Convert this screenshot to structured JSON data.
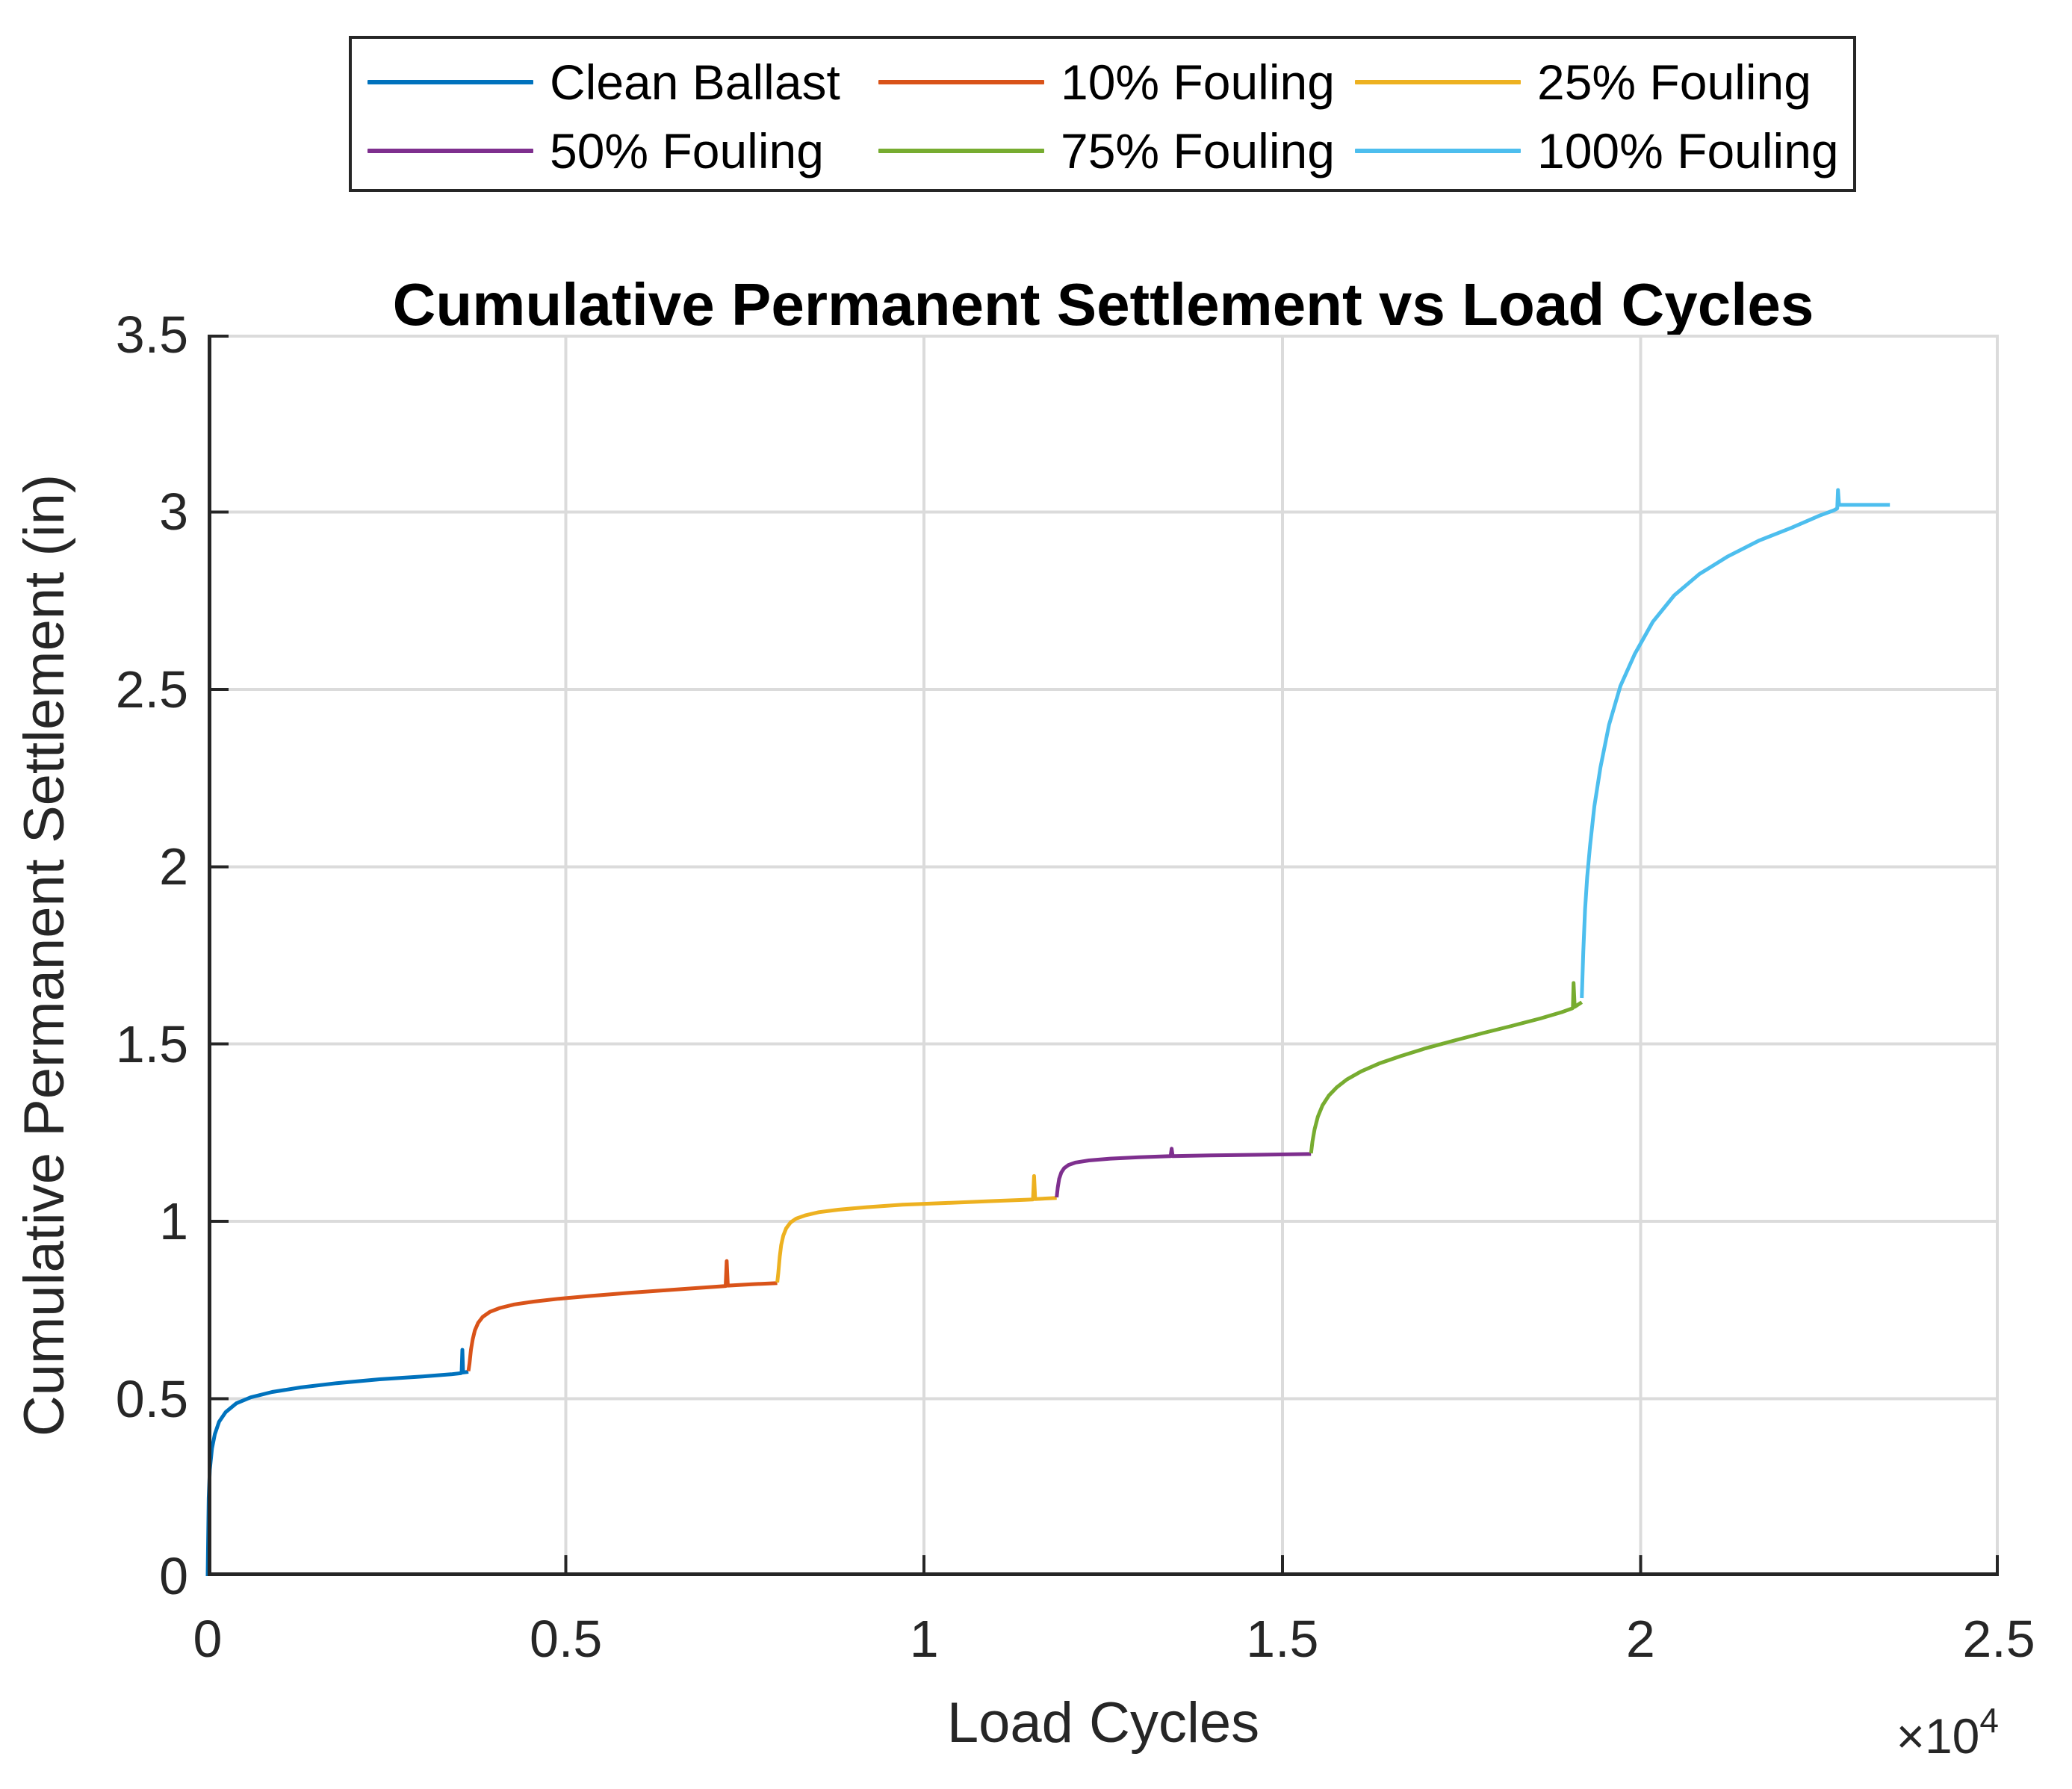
{
  "chart_data": {
    "type": "line",
    "title": "Cumulative Permanent Settlement vs Load Cycles",
    "xlabel": "Load Cycles",
    "ylabel": "Cumulative Permanent Settlement (in)",
    "x_axis_multiplier_base": "×10",
    "x_axis_multiplier_exponent": "4",
    "xlim": [
      0,
      25000
    ],
    "ylim": [
      0,
      3.5
    ],
    "xticks": {
      "values": [
        0,
        5000,
        10000,
        15000,
        20000,
        25000
      ],
      "labels": [
        "0",
        "0.5",
        "1",
        "1.5",
        "2",
        "2.5"
      ]
    },
    "yticks": {
      "values": [
        0,
        0.5,
        1,
        1.5,
        2,
        2.5,
        3,
        3.5
      ],
      "labels": [
        "0",
        "0.5",
        "1",
        "1.5",
        "2",
        "2.5",
        "3",
        "3.5"
      ]
    },
    "grid": true,
    "legend": {
      "position": "above-plot",
      "columns": 2,
      "rows": 3
    },
    "axis_color": "#262626",
    "grid_color": "#dbdbdb",
    "background_color": "#ffffff",
    "series": [
      {
        "name": "Clean Ballast",
        "color": "#0072BD",
        "points": [
          [
            0,
            0
          ],
          [
            15,
            0.22
          ],
          [
            30,
            0.3
          ],
          [
            60,
            0.36
          ],
          [
            100,
            0.4
          ],
          [
            160,
            0.435
          ],
          [
            250,
            0.462
          ],
          [
            400,
            0.487
          ],
          [
            600,
            0.504
          ],
          [
            900,
            0.519
          ],
          [
            1300,
            0.532
          ],
          [
            1800,
            0.544
          ],
          [
            2400,
            0.555
          ],
          [
            3000,
            0.563
          ],
          [
            3400,
            0.569
          ],
          [
            3530,
            0.572
          ],
          [
            3545,
            0.573
          ],
          [
            3555,
            0.638
          ],
          [
            3565,
            0.574
          ],
          [
            3640,
            0.576
          ]
        ]
      },
      {
        "name": "10% Fouling",
        "color": "#D95319",
        "points": [
          [
            3640,
            0.578
          ],
          [
            3655,
            0.6
          ],
          [
            3675,
            0.638
          ],
          [
            3700,
            0.668
          ],
          [
            3730,
            0.693
          ],
          [
            3775,
            0.714
          ],
          [
            3840,
            0.731
          ],
          [
            3940,
            0.745
          ],
          [
            4080,
            0.756
          ],
          [
            4280,
            0.766
          ],
          [
            4550,
            0.774
          ],
          [
            4900,
            0.782
          ],
          [
            5350,
            0.79
          ],
          [
            5900,
            0.799
          ],
          [
            6400,
            0.806
          ],
          [
            6900,
            0.813
          ],
          [
            7180,
            0.817
          ],
          [
            7230,
            0.818
          ],
          [
            7245,
            0.888
          ],
          [
            7260,
            0.819
          ],
          [
            7600,
            0.823
          ],
          [
            7950,
            0.826
          ]
        ]
      },
      {
        "name": "25% Fouling",
        "color": "#EDB120",
        "points": [
          [
            7950,
            0.828
          ],
          [
            7965,
            0.855
          ],
          [
            7985,
            0.9
          ],
          [
            8005,
            0.933
          ],
          [
            8035,
            0.96
          ],
          [
            8075,
            0.981
          ],
          [
            8135,
            0.997
          ],
          [
            8215,
            1.008
          ],
          [
            8340,
            1.017
          ],
          [
            8530,
            1.026
          ],
          [
            8800,
            1.033
          ],
          [
            9200,
            1.04
          ],
          [
            9700,
            1.047
          ],
          [
            10300,
            1.052
          ],
          [
            10900,
            1.057
          ],
          [
            11400,
            1.061
          ],
          [
            11520,
            1.062
          ],
          [
            11535,
            1.128
          ],
          [
            11550,
            1.063
          ],
          [
            11850,
            1.066
          ]
        ]
      },
      {
        "name": "50% Fouling",
        "color": "#7E2F8E",
        "points": [
          [
            11850,
            1.068
          ],
          [
            11865,
            1.095
          ],
          [
            11885,
            1.12
          ],
          [
            11915,
            1.138
          ],
          [
            11955,
            1.15
          ],
          [
            12015,
            1.159
          ],
          [
            12115,
            1.166
          ],
          [
            12300,
            1.172
          ],
          [
            12600,
            1.177
          ],
          [
            13000,
            1.181
          ],
          [
            13440,
            1.184
          ],
          [
            13455,
            1.205
          ],
          [
            13470,
            1.184
          ],
          [
            14000,
            1.186
          ],
          [
            14700,
            1.188
          ],
          [
            15400,
            1.19
          ]
        ]
      },
      {
        "name": "75% Fouling",
        "color": "#77AC30",
        "points": [
          [
            15400,
            1.192
          ],
          [
            15420,
            1.225
          ],
          [
            15450,
            1.26
          ],
          [
            15495,
            1.295
          ],
          [
            15560,
            1.327
          ],
          [
            15650,
            1.355
          ],
          [
            15760,
            1.378
          ],
          [
            15900,
            1.4
          ],
          [
            16100,
            1.423
          ],
          [
            16350,
            1.445
          ],
          [
            16650,
            1.466
          ],
          [
            17000,
            1.488
          ],
          [
            17400,
            1.51
          ],
          [
            17800,
            1.531
          ],
          [
            18200,
            1.551
          ],
          [
            18600,
            1.572
          ],
          [
            18900,
            1.59
          ],
          [
            19040,
            1.6
          ],
          [
            19055,
            1.602
          ],
          [
            19065,
            1.672
          ],
          [
            19080,
            1.605
          ],
          [
            19180,
            1.618
          ]
        ]
      },
      {
        "name": "100% Fouling",
        "color": "#4DBEEE",
        "points": [
          [
            19180,
            1.63
          ],
          [
            19200,
            1.76
          ],
          [
            19225,
            1.88
          ],
          [
            19255,
            1.97
          ],
          [
            19295,
            2.06
          ],
          [
            19355,
            2.17
          ],
          [
            19440,
            2.28
          ],
          [
            19560,
            2.4
          ],
          [
            19720,
            2.51
          ],
          [
            19920,
            2.6
          ],
          [
            20170,
            2.69
          ],
          [
            20470,
            2.765
          ],
          [
            20820,
            2.825
          ],
          [
            21220,
            2.875
          ],
          [
            21660,
            2.92
          ],
          [
            22100,
            2.955
          ],
          [
            22500,
            2.99
          ],
          [
            22700,
            3.005
          ],
          [
            22745,
            3.01
          ],
          [
            22755,
            3.062
          ],
          [
            22770,
            3.02
          ],
          [
            23480,
            3.02
          ]
        ]
      }
    ]
  }
}
